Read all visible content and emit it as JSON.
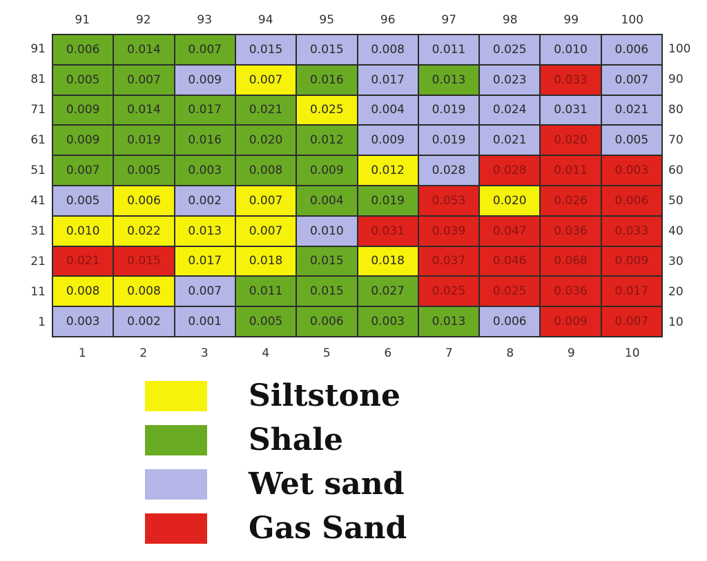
{
  "chart_data": {
    "type": "heatmap",
    "title": "",
    "top_labels": [
      "91",
      "92",
      "93",
      "94",
      "95",
      "96",
      "97",
      "98",
      "99",
      "100"
    ],
    "bottom_labels": [
      "1",
      "2",
      "3",
      "4",
      "5",
      "6",
      "7",
      "8",
      "9",
      "10"
    ],
    "left_labels": [
      "91",
      "81",
      "71",
      "61",
      "51",
      "41",
      "31",
      "21",
      "11",
      "1"
    ],
    "right_labels": [
      "100",
      "90",
      "80",
      "70",
      "60",
      "50",
      "40",
      "30",
      "20",
      "10"
    ],
    "values": [
      [
        "0.006",
        "0.014",
        "0.007",
        "0.015",
        "0.015",
        "0.008",
        "0.011",
        "0.025",
        "0.010",
        "0.006"
      ],
      [
        "0.005",
        "0.007",
        "0.009",
        "0.007",
        "0.016",
        "0.017",
        "0.013",
        "0.023",
        "0.033",
        "0.007"
      ],
      [
        "0.009",
        "0.014",
        "0.017",
        "0.021",
        "0.025",
        "0.004",
        "0.019",
        "0.024",
        "0.031",
        "0.021"
      ],
      [
        "0.009",
        "0.019",
        "0.016",
        "0.020",
        "0.012",
        "0.009",
        "0.019",
        "0.021",
        "0.020",
        "0.005"
      ],
      [
        "0.007",
        "0.005",
        "0.003",
        "0.008",
        "0.009",
        "0.012",
        "0.028",
        "0.028",
        "0.011",
        "0.003"
      ],
      [
        "0.005",
        "0.006",
        "0.002",
        "0.007",
        "0.004",
        "0.019",
        "0.053",
        "0.020",
        "0.026",
        "0.006"
      ],
      [
        "0.010",
        "0.022",
        "0.013",
        "0.007",
        "0.010",
        "0.031",
        "0.039",
        "0.047",
        "0.036",
        "0.033"
      ],
      [
        "0.021",
        "0.015",
        "0.017",
        "0.018",
        "0.015",
        "0.018",
        "0.037",
        "0.046",
        "0.068",
        "0.009"
      ],
      [
        "0.008",
        "0.008",
        "0.007",
        "0.011",
        "0.015",
        "0.027",
        "0.025",
        "0.025",
        "0.036",
        "0.017"
      ],
      [
        "0.003",
        "0.002",
        "0.001",
        "0.005",
        "0.006",
        "0.003",
        "0.013",
        "0.006",
        "0.009",
        "0.007"
      ]
    ],
    "classes": [
      [
        "shale",
        "shale",
        "shale",
        "wet",
        "wet",
        "wet",
        "wet",
        "wet",
        "wet",
        "wet"
      ],
      [
        "shale",
        "shale",
        "wet",
        "silt",
        "shale",
        "wet",
        "shale",
        "wet",
        "gas",
        "wet"
      ],
      [
        "shale",
        "shale",
        "shale",
        "shale",
        "silt",
        "wet",
        "wet",
        "wet",
        "wet",
        "wet"
      ],
      [
        "shale",
        "shale",
        "shale",
        "shale",
        "shale",
        "wet",
        "wet",
        "wet",
        "gas",
        "wet"
      ],
      [
        "shale",
        "shale",
        "shale",
        "shale",
        "shale",
        "silt",
        "wet",
        "gas",
        "gas",
        "gas"
      ],
      [
        "wet",
        "silt",
        "wet",
        "silt",
        "shale",
        "shale",
        "gas",
        "silt",
        "gas",
        "gas"
      ],
      [
        "silt",
        "silt",
        "silt",
        "silt",
        "wet",
        "gas",
        "gas",
        "gas",
        "gas",
        "gas"
      ],
      [
        "gas",
        "gas",
        "silt",
        "silt",
        "shale",
        "silt",
        "gas",
        "gas",
        "gas",
        "gas"
      ],
      [
        "silt",
        "silt",
        "wet",
        "shale",
        "shale",
        "shale",
        "gas",
        "gas",
        "gas",
        "gas"
      ],
      [
        "wet",
        "wet",
        "wet",
        "shale",
        "shale",
        "shale",
        "shale",
        "wet",
        "gas",
        "gas"
      ]
    ],
    "class_colors": {
      "silt": "#f6f20a",
      "shale": "#6aab24",
      "wet": "#b3b6e6",
      "gas": "#e0231c"
    },
    "legend": [
      {
        "key": "silt",
        "label": "Siltstone",
        "color": "#f6f20a"
      },
      {
        "key": "shale",
        "label": "Shale",
        "color": "#6aab24"
      },
      {
        "key": "wet",
        "label": "Wet sand",
        "color": "#b3b6e6"
      },
      {
        "key": "gas",
        "label": "Gas Sand",
        "color": "#e0231c"
      }
    ],
    "legend_position": "bottom"
  }
}
